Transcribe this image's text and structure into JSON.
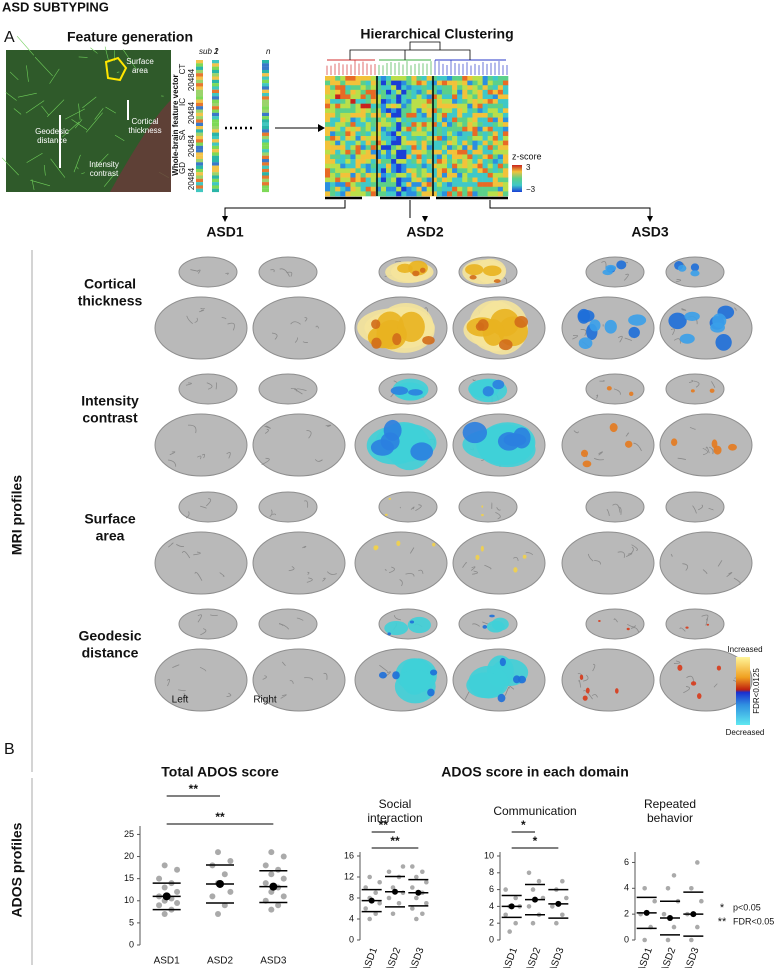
{
  "header": {
    "title": "ASD SUBTYPING"
  },
  "panel_a": {
    "label": "A",
    "feature_title": "Feature generation",
    "clustering_title": "Hierarchical Clustering",
    "brain_labels": [
      [
        "Surface",
        "area"
      ],
      [
        "Cortical",
        "thickness"
      ],
      [
        "Geodesic",
        "distance"
      ],
      [
        "Intensity",
        "contrast"
      ]
    ],
    "vector": {
      "sub": "sub 1",
      "cols": [
        "2",
        "n"
      ],
      "axis": "Whole-brain feature vector",
      "features": [
        {
          "name": "CT",
          "size": "20484"
        },
        {
          "name": "IC",
          "size": "20484"
        },
        {
          "name": "SA",
          "size": "20484"
        },
        {
          "name": "GD",
          "size": "20484"
        }
      ]
    },
    "zscore": {
      "title": "z-score",
      "max": "3",
      "min": "−3"
    },
    "subtypes": [
      "ASD1",
      "ASD2",
      "ASD3"
    ],
    "rows": [
      [
        "Cortical",
        "thickness"
      ],
      [
        "Intensity",
        "contrast"
      ],
      [
        "Surface",
        "area"
      ],
      [
        "Geodesic",
        "distance"
      ]
    ],
    "side_label": "MRI profiles",
    "hemispheres": [
      "Left",
      "Right"
    ],
    "legend": {
      "increased": "Increased",
      "decreased": "Decreased",
      "threshold": "FDR<0.0125"
    }
  },
  "panel_b": {
    "label": "B",
    "side_label": "ADOS profiles",
    "domain_title": "ADOS score in each domain",
    "legend": [
      {
        "mark": "*",
        "text": "p<0.05"
      },
      {
        "mark": "**",
        "text": "FDR<0.05"
      }
    ]
  },
  "chart_data": [
    {
      "type": "dot",
      "title": [
        "Total ADOS score"
      ],
      "categories": [
        "ASD1",
        "ASD2",
        "ASD3"
      ],
      "values": [
        11,
        13.8,
        13.2
      ],
      "errors": [
        3,
        4.3,
        3.6
      ],
      "points": [
        [
          7,
          8,
          9,
          9.5,
          10,
          10.5,
          11,
          12,
          13,
          14,
          15,
          17,
          18
        ],
        [
          7,
          9,
          11,
          12,
          14,
          16,
          18,
          19,
          21
        ],
        [
          8,
          9,
          10,
          11,
          12,
          13,
          14,
          15,
          16,
          17,
          18,
          20,
          21
        ]
      ],
      "ylim": [
        0,
        26
      ],
      "yticks": [
        0,
        5,
        10,
        15,
        20,
        25
      ],
      "annotations": [
        {
          "label": "**",
          "from": 0,
          "to": 1
        },
        {
          "label": "**",
          "from": 0,
          "to": 2
        }
      ],
      "color": "#000000"
    },
    {
      "type": "dot",
      "title": [
        "Social",
        "interaction"
      ],
      "categories": [
        "ASD1",
        "ASD2",
        "ASD3"
      ],
      "values": [
        7.5,
        9.2,
        9
      ],
      "errors": [
        2.1,
        2.9,
        2.5
      ],
      "points": [
        [
          4,
          5,
          6,
          7,
          8,
          9,
          10,
          11,
          12
        ],
        [
          5,
          7,
          8,
          9,
          10,
          12,
          13,
          14
        ],
        [
          4,
          5,
          6,
          7,
          8,
          9,
          10,
          11,
          12,
          13,
          14
        ]
      ],
      "ylim": [
        0,
        16
      ],
      "yticks": [
        0,
        4,
        8,
        12,
        16
      ],
      "annotations": [
        {
          "label": "**",
          "from": 0,
          "to": 1
        },
        {
          "label": "**",
          "from": 0,
          "to": 2
        }
      ],
      "color": "#000000"
    },
    {
      "type": "dot",
      "title": [
        "Communication"
      ],
      "categories": [
        "ASD1",
        "ASD2",
        "ASD3"
      ],
      "values": [
        4,
        4.8,
        4.3
      ],
      "errors": [
        1.3,
        1.8,
        1.7
      ],
      "points": [
        [
          1,
          2,
          3,
          4,
          4,
          5,
          6
        ],
        [
          2,
          3,
          4,
          5,
          6,
          7,
          8
        ],
        [
          2,
          3,
          4,
          5,
          6,
          7
        ]
      ],
      "ylim": [
        0,
        10
      ],
      "yticks": [
        0,
        2,
        4,
        6,
        8,
        10
      ],
      "annotations": [
        {
          "label": "*",
          "from": 0,
          "to": 1
        },
        {
          "label": "*",
          "from": 0,
          "to": 2
        }
      ],
      "color": "#000000"
    },
    {
      "type": "dot",
      "title": [
        "Repeated",
        "behavior"
      ],
      "categories": [
        "ASD1",
        "ASD2",
        "ASD3"
      ],
      "values": [
        2.1,
        1.7,
        2
      ],
      "errors": [
        1.2,
        1.3,
        1.7
      ],
      "points": [
        [
          0,
          1,
          2,
          3,
          4
        ],
        [
          0,
          1,
          2,
          3,
          4,
          5
        ],
        [
          0,
          1,
          2,
          3,
          4,
          6
        ]
      ],
      "ylim": [
        0,
        6.5
      ],
      "yticks": [
        0,
        2,
        4,
        6
      ],
      "annotations": [],
      "color": "#000000"
    }
  ]
}
